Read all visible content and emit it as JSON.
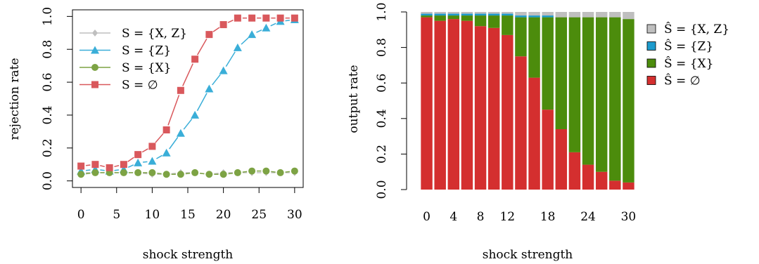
{
  "chart_data": [
    {
      "type": "line",
      "xlabel": "shock strength",
      "ylabel": "rejection rate",
      "xlim": [
        -1.2,
        31.2
      ],
      "ylim": [
        -0.04,
        1.04
      ],
      "x_ticks": [
        "0",
        "5",
        "10",
        "15",
        "20",
        "25",
        "30"
      ],
      "y_ticks": [
        "0.0",
        "0.2",
        "0.4",
        "0.6",
        "0.8",
        "1.0"
      ],
      "x": [
        0,
        2,
        4,
        6,
        8,
        10,
        12,
        14,
        16,
        18,
        20,
        22,
        24,
        26,
        28,
        30
      ],
      "legend_position": "top-left",
      "series": [
        {
          "name": "S = {X, Z}",
          "color": "#bfbfbf",
          "marker": "diamond",
          "values": [
            0.05,
            0.05,
            0.05,
            0.05,
            0.05,
            0.04,
            0.04,
            0.05,
            0.05,
            0.04,
            0.05,
            0.05,
            0.05,
            0.05,
            0.05,
            0.05
          ]
        },
        {
          "name": "S = {Z}",
          "color": "#3aaed8",
          "marker": "triangle",
          "values": [
            0.06,
            0.07,
            0.06,
            0.07,
            0.11,
            0.12,
            0.17,
            0.29,
            0.4,
            0.56,
            0.67,
            0.81,
            0.89,
            0.93,
            0.97,
            0.98
          ]
        },
        {
          "name": "S = {X}",
          "color": "#7da344",
          "marker": "circle",
          "values": [
            0.04,
            0.05,
            0.05,
            0.05,
            0.05,
            0.05,
            0.04,
            0.04,
            0.05,
            0.04,
            0.04,
            0.05,
            0.06,
            0.06,
            0.05,
            0.06
          ]
        },
        {
          "name": "S = ∅",
          "color": "#d9585c",
          "marker": "square",
          "values": [
            0.09,
            0.1,
            0.08,
            0.1,
            0.16,
            0.21,
            0.31,
            0.55,
            0.74,
            0.89,
            0.95,
            0.99,
            0.99,
            0.99,
            0.99,
            0.99
          ]
        }
      ]
    },
    {
      "type": "bar",
      "stacked": true,
      "xlabel": "shock strength",
      "ylabel": "output rate",
      "ylim": [
        0,
        1
      ],
      "x_tick_labels": [
        "0",
        "4",
        "8",
        "12",
        "18",
        "24",
        "30"
      ],
      "x_tick_positions": [
        0,
        4,
        8,
        12,
        18,
        24,
        30
      ],
      "categories": [
        0,
        2,
        4,
        6,
        8,
        10,
        12,
        14,
        16,
        18,
        20,
        22,
        24,
        26,
        28,
        30
      ],
      "y_ticks": [
        "0.0",
        "0.2",
        "0.4",
        "0.6",
        "0.8",
        "1.0"
      ],
      "legend_position": "right",
      "series": [
        {
          "name": "Ŝ = ∅",
          "color": "#d42f2f",
          "values": [
            0.97,
            0.95,
            0.96,
            0.95,
            0.92,
            0.91,
            0.87,
            0.75,
            0.63,
            0.45,
            0.34,
            0.21,
            0.14,
            0.1,
            0.05,
            0.04
          ]
        },
        {
          "name": "Ŝ = {X}",
          "color": "#4c8c0c",
          "values": [
            0.01,
            0.03,
            0.02,
            0.03,
            0.06,
            0.07,
            0.11,
            0.22,
            0.34,
            0.52,
            0.63,
            0.76,
            0.83,
            0.87,
            0.92,
            0.92
          ]
        },
        {
          "name": "Ŝ = {Z}",
          "color": "#1d9bcd",
          "values": [
            0.01,
            0.01,
            0.01,
            0.01,
            0.01,
            0.01,
            0.01,
            0.01,
            0.01,
            0.01,
            0.0,
            0.0,
            0.0,
            0.0,
            0.0,
            0.0
          ]
        },
        {
          "name": "Ŝ = {X, Z}",
          "color": "#bfbfbf",
          "values": [
            0.01,
            0.01,
            0.01,
            0.01,
            0.01,
            0.01,
            0.01,
            0.02,
            0.02,
            0.02,
            0.03,
            0.03,
            0.03,
            0.03,
            0.03,
            0.04
          ]
        }
      ],
      "legend_order": [
        "Ŝ = {X, Z}",
        "Ŝ = {Z}",
        "Ŝ = {X}",
        "Ŝ = ∅"
      ]
    }
  ]
}
